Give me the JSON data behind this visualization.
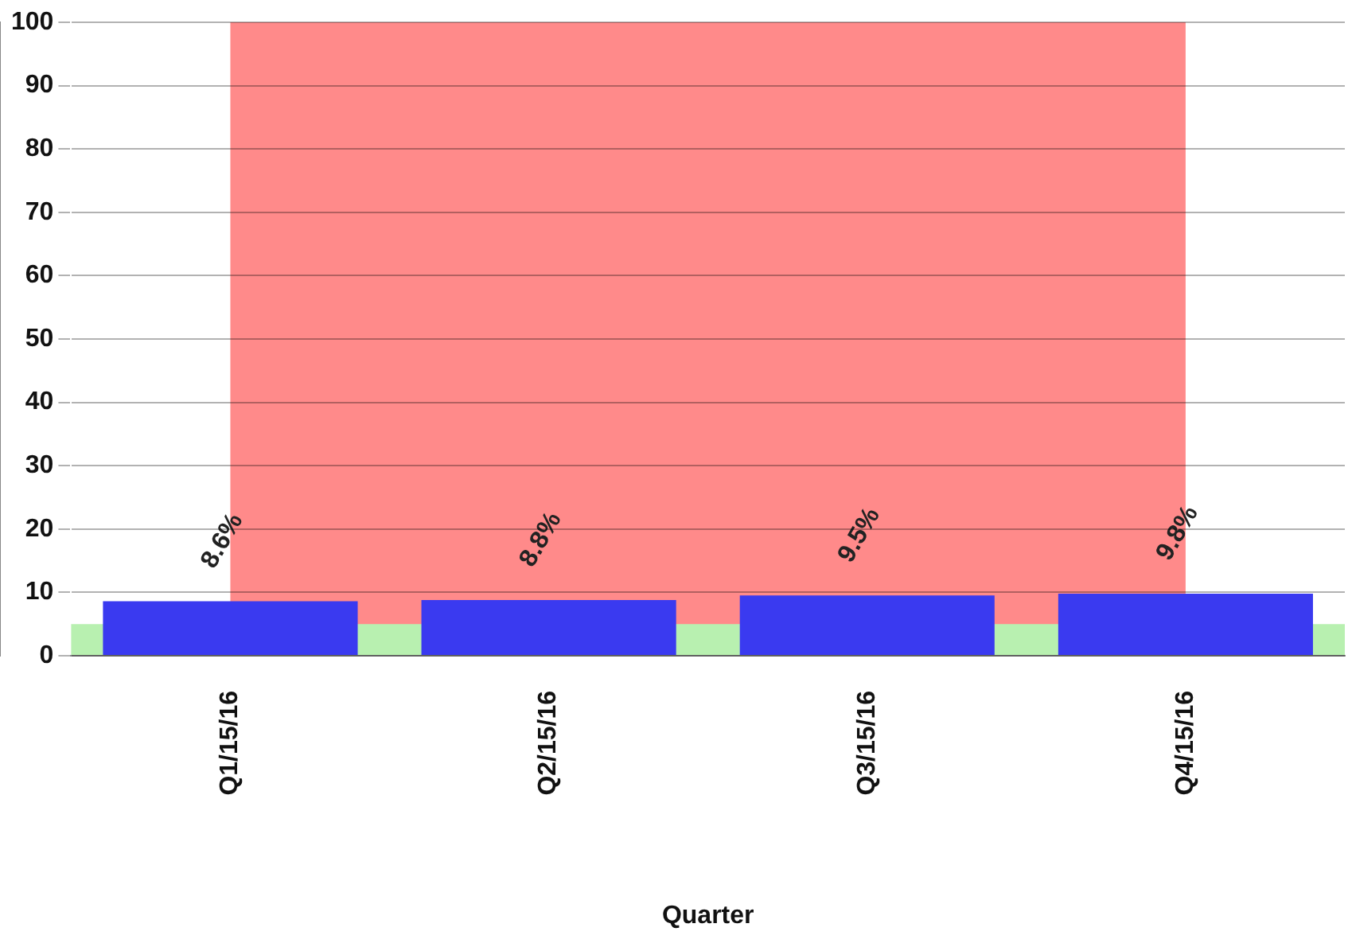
{
  "chart_data": {
    "type": "bar",
    "xlabel": "Quarter",
    "categories": [
      "Q1/15/16",
      "Q2/15/16",
      "Q3/15/16",
      "Q4/15/16"
    ],
    "series": [
      {
        "color": "#3a3af0",
        "values": [
          8.6,
          8.8,
          9.5,
          9.8
        ],
        "value_labels": [
          "8.6%",
          "8.8%",
          "9.5%",
          "9.8%"
        ]
      }
    ],
    "bands": [
      {
        "axis": "x",
        "from": "Q1/15/16",
        "to": "Q4/15/16",
        "color": "#ff8a8a"
      },
      {
        "axis": "y",
        "from": 0,
        "to": 5,
        "color": "#b8f0b0"
      }
    ],
    "ylim": [
      0,
      100
    ],
    "yticks": [
      0,
      10,
      20,
      30,
      40,
      50,
      60,
      70,
      80,
      90,
      100
    ],
    "grid": "y",
    "legend": false
  }
}
